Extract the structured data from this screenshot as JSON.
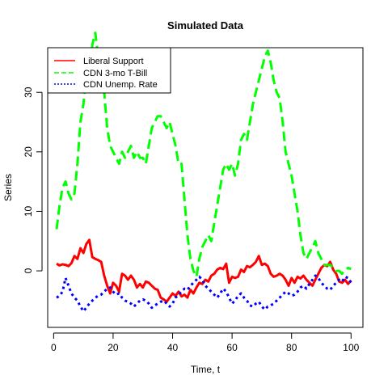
{
  "chart_data": {
    "type": "line",
    "title": "Simulated Data",
    "xlabel": "Time, t",
    "ylabel": "Series",
    "xlim": [
      -2,
      104
    ],
    "ylim": [
      -9.5,
      37.5
    ],
    "xticks": [
      0,
      20,
      40,
      60,
      80,
      100
    ],
    "yticks": [
      0,
      10,
      20,
      30
    ],
    "legend_position": "top-left",
    "grid": false,
    "series": [
      {
        "name": "Liberal Support",
        "color": "#ff0000",
        "line_style": "solid",
        "x": [
          1,
          2,
          3,
          4,
          5,
          6,
          7,
          8,
          9,
          10,
          11,
          12,
          13,
          14,
          15,
          16,
          17,
          18,
          19,
          20,
          21,
          22,
          23,
          24,
          25,
          26,
          27,
          28,
          29,
          30,
          31,
          32,
          33,
          34,
          35,
          36,
          37,
          38,
          39,
          40,
          41,
          42,
          43,
          44,
          45,
          46,
          47,
          48,
          49,
          50,
          51,
          52,
          53,
          54,
          55,
          56,
          57,
          58,
          59,
          60,
          61,
          62,
          63,
          64,
          65,
          66,
          67,
          68,
          69,
          70,
          71,
          72,
          73,
          74,
          75,
          76,
          77,
          78,
          79,
          80,
          81,
          82,
          83,
          84,
          85,
          86,
          87,
          88,
          89,
          90,
          91,
          92,
          93,
          94,
          95,
          96,
          97,
          98,
          99,
          100
        ],
        "values": [
          1.2,
          0.9,
          1.1,
          1.0,
          0.8,
          1.3,
          2.5,
          2.0,
          3.8,
          3.0,
          4.5,
          5.2,
          2.3,
          2.0,
          1.8,
          1.5,
          -0.8,
          -2.5,
          -3.8,
          -2.0,
          -2.5,
          -3.5,
          -0.5,
          -0.8,
          -1.5,
          -0.8,
          -1.5,
          -2.8,
          -2.2,
          -2.8,
          -1.8,
          -2.0,
          -2.5,
          -3.0,
          -3.2,
          -4.5,
          -4.8,
          -5.2,
          -4.5,
          -3.8,
          -4.2,
          -3.5,
          -4.3,
          -4.0,
          -4.5,
          -3.2,
          -3.8,
          -2.8,
          -2.0,
          -2.2,
          -1.5,
          -1.8,
          -0.8,
          -0.5,
          0.2,
          0.5,
          0.3,
          1.2,
          -2.0,
          -1.0,
          -1.2,
          -1.0,
          0.2,
          -0.2,
          0.8,
          0.6,
          1.0,
          1.5,
          2.5,
          1.0,
          1.2,
          0.8,
          -0.5,
          -1.0,
          -0.8,
          -0.5,
          -0.8,
          -1.5,
          -2.5,
          -1.2,
          -2.0,
          -1.0,
          -1.3,
          -0.8,
          -1.5,
          -2.0,
          -2.5,
          -1.5,
          -0.5,
          0.5,
          1.0,
          0.8,
          1.5,
          0.2,
          -0.5,
          -1.8,
          -2.0,
          -1.5,
          -2.2,
          -1.6
        ]
      },
      {
        "name": "CDN 3-mo T-Bill",
        "color": "#00ff00",
        "line_style": "dashed",
        "x": [
          1,
          2,
          3,
          4,
          5,
          6,
          7,
          8,
          9,
          10,
          11,
          12,
          13,
          14,
          15,
          16,
          17,
          18,
          19,
          20,
          21,
          22,
          23,
          24,
          25,
          26,
          27,
          28,
          29,
          30,
          31,
          32,
          33,
          34,
          35,
          36,
          37,
          38,
          39,
          40,
          41,
          42,
          43,
          44,
          45,
          46,
          47,
          48,
          49,
          50,
          51,
          52,
          53,
          54,
          55,
          56,
          57,
          58,
          59,
          60,
          61,
          62,
          63,
          64,
          65,
          66,
          67,
          68,
          69,
          70,
          71,
          72,
          73,
          74,
          75,
          76,
          77,
          78,
          79,
          80,
          81,
          82,
          83,
          84,
          85,
          86,
          87,
          88,
          89,
          90,
          91,
          92,
          93,
          94,
          95,
          96,
          97,
          98,
          99,
          100
        ],
        "values": [
          7,
          11,
          14,
          15,
          13,
          12,
          13,
          18,
          25,
          28,
          33,
          32,
          38,
          40,
          36,
          34,
          30,
          24,
          21,
          20,
          19,
          18,
          20,
          19,
          20,
          21,
          19,
          20,
          19,
          19,
          18,
          21,
          24,
          25,
          26,
          26,
          25,
          24,
          25,
          23,
          21,
          18,
          18,
          12,
          6,
          2,
          0,
          -1,
          2,
          4,
          5,
          6,
          5,
          8,
          11,
          14,
          17,
          18,
          17,
          18,
          16,
          18,
          22,
          23,
          22,
          25,
          28,
          30,
          32,
          34,
          36,
          37,
          35,
          32,
          30,
          29,
          25,
          20,
          18,
          16,
          13,
          10,
          6,
          3,
          2,
          3,
          4,
          5,
          3,
          2,
          1,
          1,
          1,
          0.5,
          0,
          0,
          -0.5,
          0.2,
          0.5,
          0.3
        ]
      },
      {
        "name": "CDN Unemp. Rate",
        "color": "#0000ff",
        "line_style": "dotted",
        "x": [
          1,
          2,
          3,
          4,
          5,
          6,
          7,
          8,
          9,
          10,
          11,
          12,
          13,
          14,
          15,
          16,
          17,
          18,
          19,
          20,
          21,
          22,
          23,
          24,
          25,
          26,
          27,
          28,
          29,
          30,
          31,
          32,
          33,
          34,
          35,
          36,
          37,
          38,
          39,
          40,
          41,
          42,
          43,
          44,
          45,
          46,
          47,
          48,
          49,
          50,
          51,
          52,
          53,
          54,
          55,
          56,
          57,
          58,
          59,
          60,
          61,
          62,
          63,
          64,
          65,
          66,
          67,
          68,
          69,
          70,
          71,
          72,
          73,
          74,
          75,
          76,
          77,
          78,
          79,
          80,
          81,
          82,
          83,
          84,
          85,
          86,
          87,
          88,
          89,
          90,
          91,
          92,
          93,
          94,
          95,
          96,
          97,
          98,
          99,
          100
        ],
        "values": [
          -4.5,
          -4.2,
          -3.5,
          -1.2,
          -2.5,
          -3.8,
          -4.5,
          -5.0,
          -6.0,
          -6.8,
          -6.2,
          -5.5,
          -5.0,
          -4.5,
          -4.2,
          -4.0,
          -3.5,
          -3.0,
          -2.8,
          -3.5,
          -4.0,
          -3.8,
          -4.5,
          -5.0,
          -5.2,
          -5.5,
          -6.0,
          -5.5,
          -5.0,
          -4.8,
          -5.0,
          -5.5,
          -6.2,
          -5.8,
          -5.5,
          -5.2,
          -5.0,
          -5.5,
          -6.0,
          -5.5,
          -4.5,
          -4.0,
          -3.5,
          -3.0,
          -3.2,
          -2.5,
          -2.0,
          -1.5,
          -1.0,
          -1.5,
          -2.5,
          -3.0,
          -3.5,
          -4.0,
          -4.5,
          -3.8,
          -3.0,
          -3.5,
          -4.5,
          -5.5,
          -5.0,
          -4.2,
          -3.8,
          -4.5,
          -5.0,
          -5.8,
          -6.0,
          -5.5,
          -5.2,
          -6.0,
          -6.5,
          -6.0,
          -5.8,
          -5.5,
          -5.0,
          -4.5,
          -4.0,
          -3.5,
          -3.8,
          -4.2,
          -4.0,
          -3.5,
          -2.8,
          -2.5,
          -3.0,
          -2.2,
          -1.5,
          -0.8,
          -1.2,
          -2.0,
          -2.5,
          -3.0,
          -3.2,
          -2.5,
          -2.0,
          -1.5,
          -1.8,
          -1.0,
          -1.2,
          -2.0
        ]
      }
    ]
  }
}
